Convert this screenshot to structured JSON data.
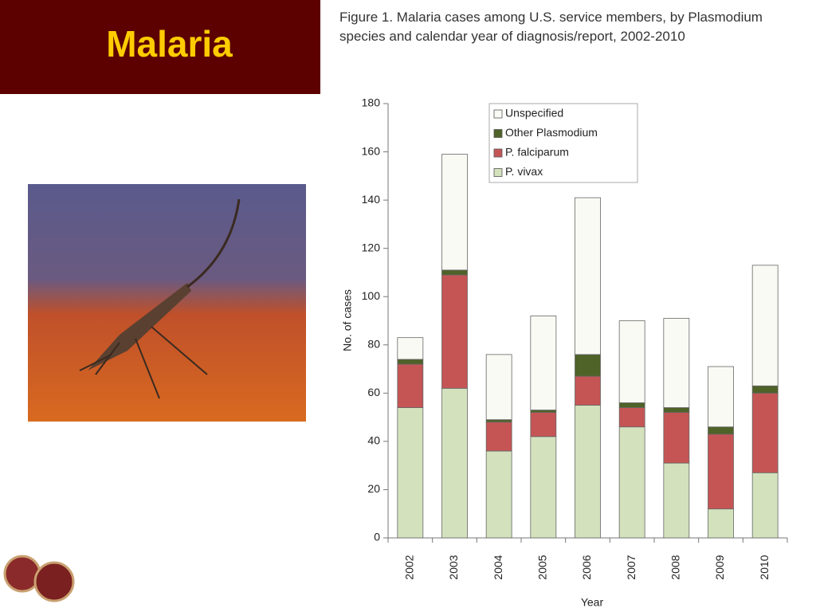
{
  "slide_title": "Malaria",
  "chart_data": {
    "type": "stacked_bar",
    "title": "Figure 1. Malaria cases among U.S. service members, by Plasmodium species and calendar year of diagnosis/report, 2002-2010",
    "x_label": "Year",
    "y_label": "No. of cases",
    "categories": [
      "2002",
      "2003",
      "2004",
      "2005",
      "2006",
      "2007",
      "2008",
      "2009",
      "2010"
    ],
    "series": [
      {
        "name": "P. vivax",
        "color": "#d3e2bd",
        "values": [
          54,
          62,
          36,
          42,
          55,
          46,
          31,
          12,
          27
        ]
      },
      {
        "name": "P. falciparum",
        "color": "#c55555",
        "values": [
          18,
          47,
          12,
          10,
          12,
          8,
          21,
          31,
          33
        ]
      },
      {
        "name": "Other Plasmodium",
        "color": "#4f6228",
        "values": [
          2,
          2,
          1,
          1,
          9,
          2,
          2,
          3,
          3
        ]
      },
      {
        "name": "Unspecified",
        "color": "#fafaf5",
        "values": [
          9,
          48,
          27,
          39,
          65,
          34,
          37,
          25,
          50
        ]
      }
    ],
    "ylim": [
      0,
      180
    ],
    "yticks": [
      0,
      20,
      40,
      60,
      80,
      100,
      120,
      140,
      160,
      180
    ],
    "legend": "top",
    "grid": false
  }
}
